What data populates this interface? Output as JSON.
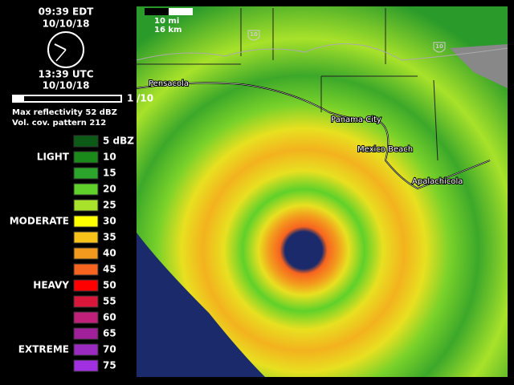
{
  "header": {
    "local_time": "09:39 EDT",
    "local_date": "10/10/18",
    "utc_time": "13:39 UTC",
    "utc_date": "10/10/18",
    "frame": "1",
    "frame_total": "/10",
    "max_reflectivity": "Max reflectivity 52 dBZ",
    "vcp": "Vol. cov. pattern 212"
  },
  "legend": {
    "levels": [
      {
        "label": "5 dBZ",
        "color": "#0b5a16"
      },
      {
        "label": "10",
        "color": "#1a8a1a",
        "intensity": "LIGHT"
      },
      {
        "label": "15",
        "color": "#2aa52a"
      },
      {
        "label": "20",
        "color": "#5fd12a"
      },
      {
        "label": "25",
        "color": "#a8e22a"
      },
      {
        "label": "30",
        "color": "#ffff00",
        "intensity": "MODERATE"
      },
      {
        "label": "35",
        "color": "#f7c21a"
      },
      {
        "label": "40",
        "color": "#f39a1e"
      },
      {
        "label": "45",
        "color": "#f7641f"
      },
      {
        "label": "50",
        "color": "#ff0000",
        "intensity": "HEAVY"
      },
      {
        "label": "55",
        "color": "#d8173b"
      },
      {
        "label": "60",
        "color": "#c0207a"
      },
      {
        "label": "65",
        "color": "#a0209a"
      },
      {
        "label": "70",
        "color": "#9a2ac0",
        "intensity": "EXTREME"
      },
      {
        "label": "75",
        "color": "#a030e0"
      }
    ]
  },
  "map": {
    "scale": [
      "10 mi",
      "16 km"
    ],
    "cities": [
      "Pensacola",
      "Panama City",
      "Mexico Beach",
      "Apalachicola"
    ],
    "highways": [
      "10",
      "10"
    ]
  }
}
